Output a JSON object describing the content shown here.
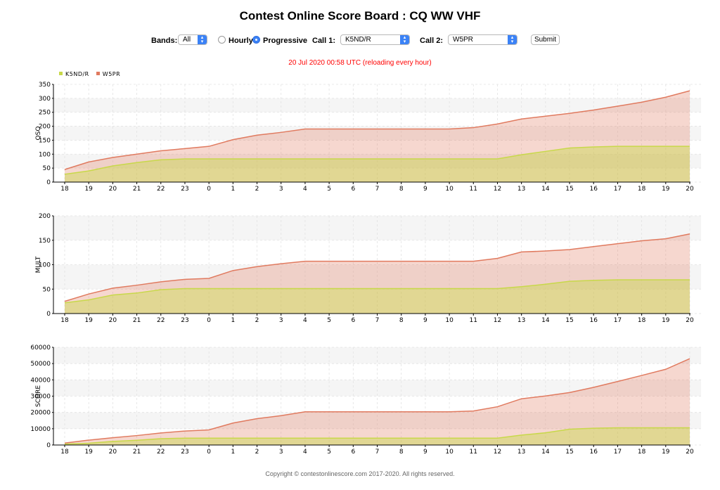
{
  "page": {
    "title": "Contest Online Score Board : CQ WW VHF",
    "status": "20 Jul 2020 00:58 UTC   (reloading every hour)",
    "footer": "Copyright © contestonlinescore.com 2017-2020. All rights reserved."
  },
  "controls": {
    "bands_label": "Bands:",
    "bands_value": "All",
    "mode_hourly_label": "Hourly",
    "mode_progressive_label": "Progressive",
    "selected_mode": "Progressive",
    "call1_label": "Call 1:",
    "call1_value": "K5ND/R",
    "call2_label": "Call 2:",
    "call2_value": "W5PR",
    "submit_label": "Submit",
    "accent_color": "#3b82f6"
  },
  "legend": {
    "items": [
      {
        "label": "K5ND/R",
        "color": "#c8d84a"
      },
      {
        "label": "W5PR",
        "color": "#e07a5f"
      }
    ]
  },
  "chart_data": [
    {
      "type": "area",
      "ylabel": "QSO",
      "ylim": [
        0,
        350
      ],
      "yticks": [
        "0",
        "50",
        "100",
        "150",
        "200",
        "250",
        "300",
        "350"
      ],
      "categories": [
        "18",
        "19",
        "20",
        "21",
        "22",
        "23",
        "0",
        "1",
        "2",
        "3",
        "4",
        "5",
        "6",
        "7",
        "8",
        "9",
        "10",
        "11",
        "12",
        "13",
        "14",
        "15",
        "16",
        "17",
        "18",
        "19",
        "20"
      ],
      "grid": true,
      "series": [
        {
          "name": "W5PR",
          "color": "#e07a5f",
          "values": [
            45,
            72,
            88,
            100,
            112,
            120,
            128,
            152,
            168,
            178,
            190,
            190,
            190,
            190,
            190,
            190,
            190,
            195,
            208,
            226,
            236,
            246,
            258,
            272,
            286,
            304,
            327
          ]
        },
        {
          "name": "K5ND/R",
          "color": "#c8d84a",
          "values": [
            28,
            40,
            58,
            70,
            80,
            83,
            83,
            83,
            83,
            83,
            83,
            83,
            83,
            83,
            83,
            83,
            83,
            83,
            83,
            98,
            110,
            122,
            126,
            128,
            128,
            128,
            128
          ]
        }
      ]
    },
    {
      "type": "area",
      "ylabel": "MULT",
      "ylim": [
        0,
        200
      ],
      "yticks": [
        "0",
        "50",
        "100",
        "150",
        "200"
      ],
      "categories": [
        "18",
        "19",
        "20",
        "21",
        "22",
        "23",
        "0",
        "1",
        "2",
        "3",
        "4",
        "5",
        "6",
        "7",
        "8",
        "9",
        "10",
        "11",
        "12",
        "13",
        "14",
        "15",
        "16",
        "17",
        "18",
        "19",
        "20"
      ],
      "grid": true,
      "series": [
        {
          "name": "W5PR",
          "color": "#e07a5f",
          "values": [
            25,
            40,
            52,
            58,
            65,
            70,
            72,
            88,
            96,
            102,
            107,
            107,
            107,
            107,
            107,
            107,
            107,
            107,
            113,
            126,
            128,
            131,
            137,
            143,
            149,
            153,
            163
          ]
        },
        {
          "name": "K5ND/R",
          "color": "#c8d84a",
          "values": [
            22,
            28,
            38,
            42,
            49,
            51,
            51,
            51,
            51,
            51,
            51,
            51,
            51,
            51,
            51,
            51,
            51,
            51,
            51,
            55,
            60,
            66,
            68,
            69,
            69,
            69,
            69
          ]
        }
      ]
    },
    {
      "type": "area",
      "ylabel": "SCORE",
      "ylim": [
        0,
        60000
      ],
      "yticks": [
        "0",
        "10000",
        "20000",
        "30000",
        "40000",
        "50000",
        "60000"
      ],
      "categories": [
        "18",
        "19",
        "20",
        "21",
        "22",
        "23",
        "0",
        "1",
        "2",
        "3",
        "4",
        "5",
        "6",
        "7",
        "8",
        "9",
        "10",
        "11",
        "12",
        "13",
        "14",
        "15",
        "16",
        "17",
        "18",
        "19",
        "20"
      ],
      "grid": true,
      "series": [
        {
          "name": "W5PR",
          "color": "#e07a5f",
          "values": [
            1200,
            3000,
            4500,
            5800,
            7400,
            8600,
            9300,
            13500,
            16200,
            18000,
            20400,
            20400,
            20400,
            20400,
            20400,
            20400,
            20400,
            20900,
            23500,
            28400,
            30100,
            32200,
            35400,
            39000,
            42700,
            46500,
            53000
          ]
        },
        {
          "name": "K5ND/R",
          "color": "#c8d84a",
          "values": [
            600,
            1100,
            2200,
            2900,
            3900,
            4200,
            4200,
            4200,
            4200,
            4200,
            4200,
            4200,
            4200,
            4200,
            4200,
            4200,
            4200,
            4200,
            4200,
            6100,
            7500,
            9700,
            10300,
            10600,
            10600,
            10600,
            10600
          ]
        }
      ]
    }
  ]
}
